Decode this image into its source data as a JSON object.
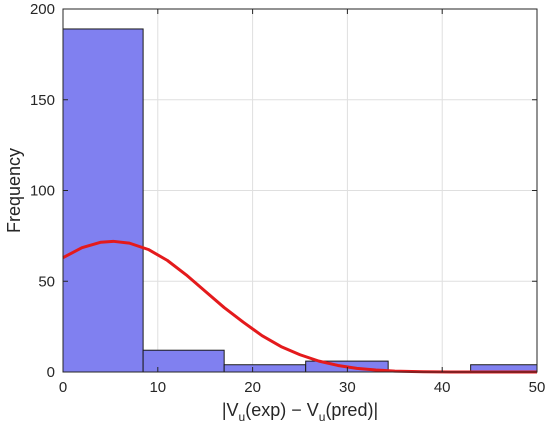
{
  "chart_data": {
    "type": "bar",
    "subtype": "histogram-with-fit-curve",
    "title": "",
    "xlabel": {
      "a": "|V",
      "a_sub": "u",
      "b": "(exp) − V",
      "b_sub": "u",
      "c": "(pred)|"
    },
    "ylabel": "Frequency",
    "xlim": [
      0,
      50
    ],
    "ylim": [
      0,
      200
    ],
    "xticks": [
      0,
      10,
      20,
      30,
      40,
      50
    ],
    "yticks": [
      0,
      50,
      100,
      150,
      200
    ],
    "grid": true,
    "bar_color": "#8080f0",
    "bar_edge_color": "#1a1a1a",
    "curve_color": "#e41a1c",
    "bins": [
      {
        "x0": 0.0,
        "x1": 8.45,
        "count": 189
      },
      {
        "x0": 8.45,
        "x1": 17.0,
        "count": 12
      },
      {
        "x0": 17.0,
        "x1": 25.6,
        "count": 4
      },
      {
        "x0": 25.6,
        "x1": 34.3,
        "count": 6
      },
      {
        "x0": 34.3,
        "x1": 43.0,
        "count": 0
      },
      {
        "x0": 43.0,
        "x1": 50.0,
        "count": 4
      }
    ],
    "fit_curve": {
      "type": "normal",
      "peak_x": 5.3,
      "peak_y": 72,
      "points": [
        [
          0,
          63
        ],
        [
          2,
          68.5
        ],
        [
          4,
          71.5
        ],
        [
          5.3,
          72
        ],
        [
          7,
          71
        ],
        [
          9,
          67.5
        ],
        [
          11,
          61.5
        ],
        [
          13,
          53.5
        ],
        [
          15,
          44.5
        ],
        [
          17,
          35.5
        ],
        [
          19,
          27.5
        ],
        [
          21,
          20
        ],
        [
          23,
          14
        ],
        [
          25,
          9.5
        ],
        [
          27,
          6
        ],
        [
          29,
          3.6
        ],
        [
          31,
          2
        ],
        [
          33,
          1.1
        ],
        [
          35,
          0.5
        ],
        [
          38,
          0.15
        ],
        [
          41,
          0.03
        ],
        [
          45,
          0
        ],
        [
          50,
          0
        ]
      ]
    }
  }
}
